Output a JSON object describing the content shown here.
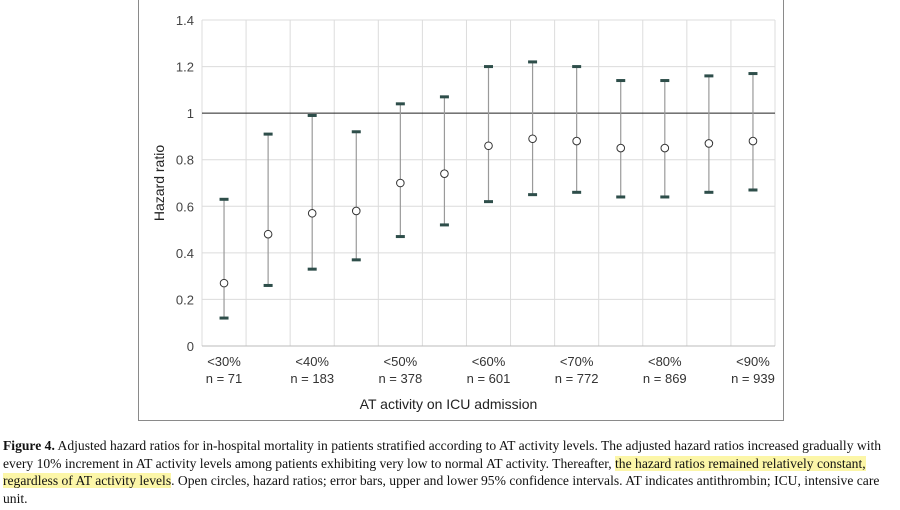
{
  "chart_data": {
    "type": "scatter",
    "xlabel": "AT activity on ICU admission",
    "ylabel": "Hazard ratio",
    "ylim": [
      0,
      1.4
    ],
    "yticks": [
      0,
      0.2,
      0.4,
      0.6,
      0.8,
      1,
      1.2,
      1.4
    ],
    "reference_line": 1,
    "grid": true,
    "tick_labels": [
      {
        "label": "<30%",
        "n": "n = 71"
      },
      {
        "label": "<40%",
        "n": "n = 183"
      },
      {
        "label": "<50%",
        "n": "n = 378"
      },
      {
        "label": "<60%",
        "n": "n = 601"
      },
      {
        "label": "<70%",
        "n": "n = 772"
      },
      {
        "label": "<80%",
        "n": "n = 869"
      },
      {
        "label": "<90%",
        "n": "n = 939"
      }
    ],
    "points": [
      {
        "hr": 0.27,
        "lower": 0.12,
        "upper": 0.63
      },
      {
        "hr": 0.48,
        "lower": 0.26,
        "upper": 0.91
      },
      {
        "hr": 0.57,
        "lower": 0.33,
        "upper": 0.99
      },
      {
        "hr": 0.58,
        "lower": 0.37,
        "upper": 0.92
      },
      {
        "hr": 0.7,
        "lower": 0.47,
        "upper": 1.04
      },
      {
        "hr": 0.74,
        "lower": 0.52,
        "upper": 1.07
      },
      {
        "hr": 0.86,
        "lower": 0.62,
        "upper": 1.2
      },
      {
        "hr": 0.89,
        "lower": 0.65,
        "upper": 1.22
      },
      {
        "hr": 0.88,
        "lower": 0.66,
        "upper": 1.2
      },
      {
        "hr": 0.85,
        "lower": 0.64,
        "upper": 1.14
      },
      {
        "hr": 0.85,
        "lower": 0.64,
        "upper": 1.14
      },
      {
        "hr": 0.87,
        "lower": 0.66,
        "upper": 1.16
      },
      {
        "hr": 0.88,
        "lower": 0.67,
        "upper": 1.17
      }
    ]
  },
  "caption": {
    "label": "Figure 4.",
    "text_before": " Adjusted hazard ratios for in-hospital mortality in patients stratified according to AT activity levels. The adjusted hazard ratios increased gradually with every 10% increment in AT activity levels among patients exhibiting very low to normal AT activity. Thereafter, ",
    "highlight": "the hazard ratios remained relatively constant, regardless of AT activity levels",
    "text_after": ". Open circles, hazard ratios; error bars, upper and lower 95% confidence intervals. AT indicates antithrombin; ICU, intensive care unit."
  }
}
